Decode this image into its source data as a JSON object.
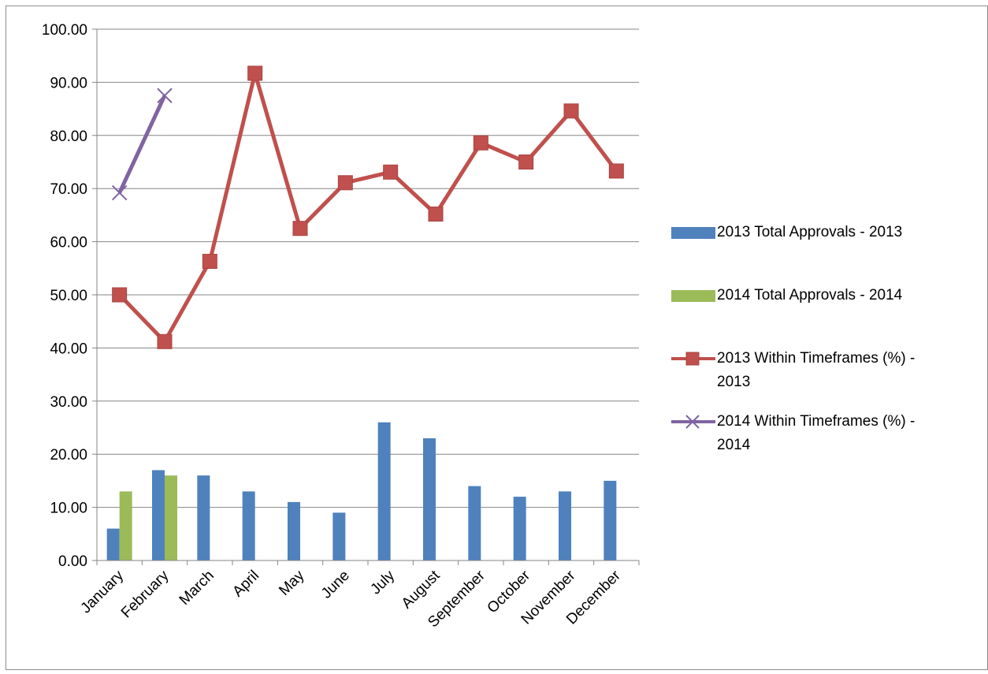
{
  "chart_data": {
    "type": "bar",
    "categories": [
      "January",
      "February",
      "March",
      "April",
      "May",
      "June",
      "July",
      "August",
      "September",
      "October",
      "November",
      "December"
    ],
    "ylim": [
      0,
      100
    ],
    "y_ticks": [
      "0.00",
      "10.00",
      "20.00",
      "30.00",
      "40.00",
      "50.00",
      "60.00",
      "70.00",
      "80.00",
      "90.00",
      "100.00"
    ],
    "grid": true,
    "legend_position": "right",
    "bar_series": [
      {
        "name": "2013 Total Approvals - 2013",
        "color": "#4f81bd",
        "values": [
          6,
          17,
          16,
          13,
          11,
          9,
          26,
          23,
          14,
          12,
          13,
          15
        ]
      },
      {
        "name": "2014 Total Approvals - 2014",
        "color": "#9bbb59",
        "values": [
          13,
          16,
          null,
          null,
          null,
          null,
          null,
          null,
          null,
          null,
          null,
          null
        ]
      }
    ],
    "line_series": [
      {
        "name": "2013 Within Timeframes (%) - 2013",
        "color": "#c0504d",
        "marker": "square",
        "values": [
          50.0,
          41.2,
          56.3,
          91.7,
          62.5,
          71.1,
          73.1,
          65.2,
          78.6,
          75.0,
          84.6,
          73.3
        ]
      },
      {
        "name": "2014 Within Timeframes (%) - 2014",
        "color": "#8064a2",
        "marker": "x",
        "values": [
          69.2,
          87.5,
          null,
          null,
          null,
          null,
          null,
          null,
          null,
          null,
          null,
          null
        ]
      }
    ]
  },
  "legend": {
    "items": [
      {
        "label": "2013 Total Approvals - 2013",
        "kind": "bar",
        "color": "#4f81bd"
      },
      {
        "label": "2014 Total Approvals - 2014",
        "kind": "bar",
        "color": "#9bbb59"
      },
      {
        "label_line1": "2013 Within Timeframes (%) -",
        "label_line2": "2013",
        "kind": "line-square",
        "color": "#c0504d"
      },
      {
        "label_line1": "2014 Within Timeframes (%) -",
        "label_line2": "2014",
        "kind": "line-x",
        "color": "#8064a2"
      }
    ]
  }
}
